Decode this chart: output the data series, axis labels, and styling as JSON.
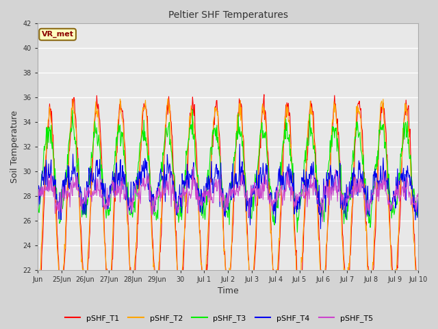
{
  "title": "Peltier SHF Temperatures",
  "ylabel": "Soil Temperature",
  "xlabel": "Time",
  "annotation_text": "VR_met",
  "annotation_color": "#8B0000",
  "annotation_bg": "#FFFFC0",
  "annotation_border": "#8B6914",
  "ylim": [
    22,
    42
  ],
  "yticks": [
    22,
    24,
    26,
    28,
    30,
    32,
    34,
    36,
    38,
    40,
    42
  ],
  "fig_bg_color": "#D4D4D4",
  "plot_bg_color": "#E8E8E8",
  "grid_color": "#FFFFFF",
  "series": [
    {
      "label": "pSHF_T1",
      "color": "#FF0000"
    },
    {
      "label": "pSHF_T2",
      "color": "#FFA500"
    },
    {
      "label": "pSHF_T3",
      "color": "#00EE00"
    },
    {
      "label": "pSHF_T4",
      "color": "#0000EE"
    },
    {
      "label": "pSHF_T5",
      "color": "#CC44CC"
    }
  ],
  "tick_positions": [
    0,
    1,
    2,
    3,
    4,
    5,
    6,
    7,
    8,
    9,
    10,
    11,
    12,
    13,
    14,
    15,
    16
  ],
  "tick_labels": [
    "Jun",
    "25Jun",
    "26Jun",
    "27Jun",
    "28Jun",
    "29Jun",
    "30",
    "Jul 1",
    "Jul 2",
    "Jul 3",
    "Jul 4",
    "Jul 5",
    "Jul 6",
    "Jul 7",
    "Jul 8",
    "Jul 9",
    "Jul 10"
  ],
  "num_days": 16,
  "samples_per_day": 48
}
